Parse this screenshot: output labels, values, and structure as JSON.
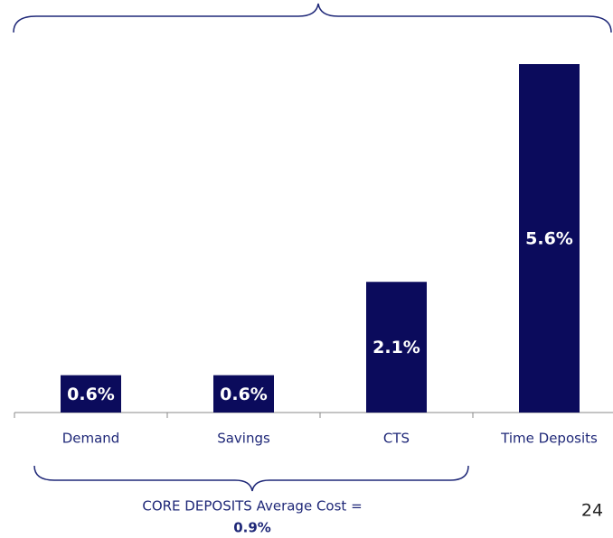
{
  "chart_data": {
    "type": "bar",
    "categories": [
      "Demand",
      "Savings",
      "CTS",
      "Time Deposits"
    ],
    "values": [
      0.6,
      0.6,
      2.1,
      5.6
    ],
    "value_labels": [
      "0.6%",
      "0.6%",
      "2.1%",
      "5.6%"
    ],
    "color": "#0b0b5c",
    "annotations": [
      "CORE DEPOSITS Average Cost =",
      "0.9%"
    ]
  },
  "page_number": "24"
}
